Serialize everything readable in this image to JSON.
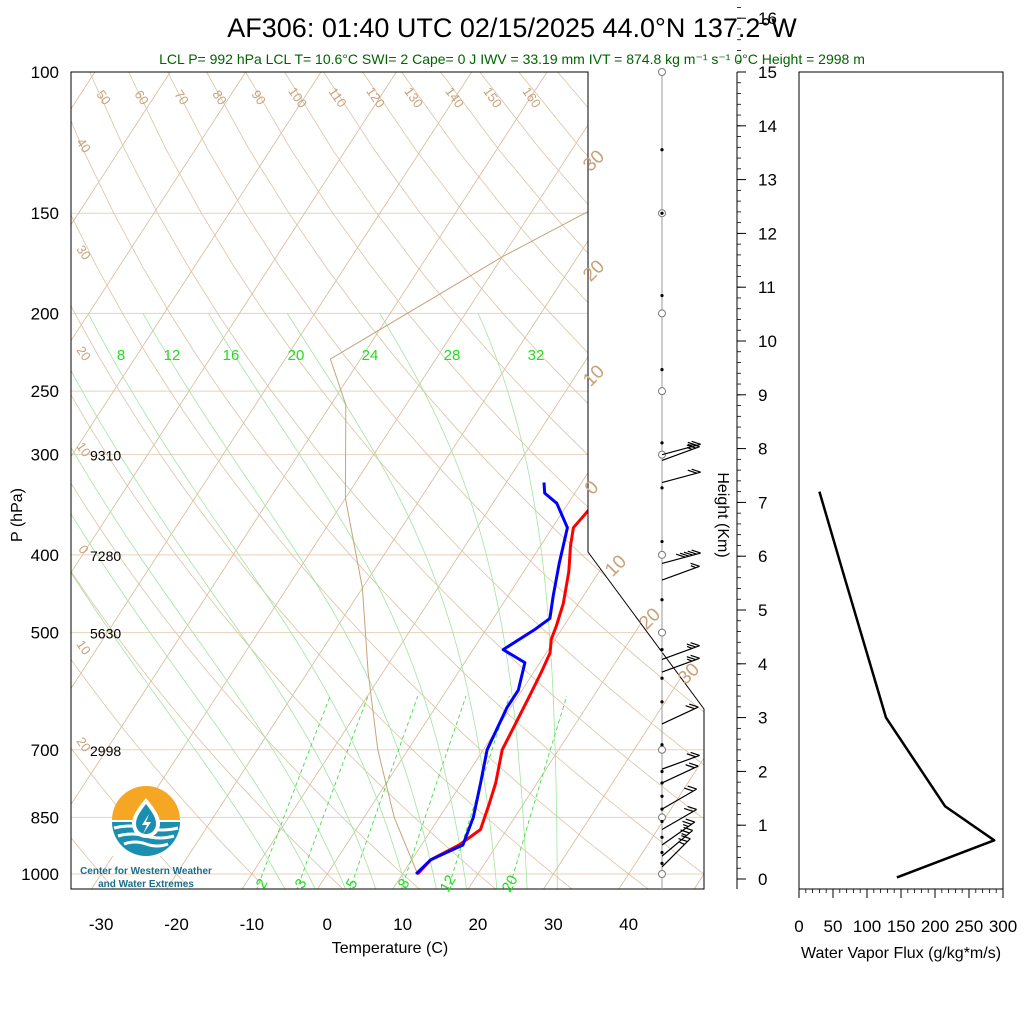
{
  "title": "AF306: 01:40 UTC 02/15/2025  44.0°N 137.2°W",
  "subtitle": "LCL P= 992 hPa  LCL T= 10.6°C  SWI= 2  Cape= 0 J  IWV = 33.19 mm  IVT = 874.8 kg m⁻¹ s⁻¹  0°C Height = 2998 m",
  "logo": {
    "line1": "Center for Western Weather",
    "line2": "and Water Extremes"
  },
  "colors": {
    "temperature": "#ff0000",
    "dewpoint": "#0000ff",
    "isotherm": "#c8a27a",
    "mixing_ratio": "#22dd22",
    "subtitle": "#006400"
  },
  "chart_data": [
    {
      "type": "line",
      "name": "skew-t",
      "xlabel": "Temperature (C)",
      "ylabel": "P (hPa)",
      "xlim": [
        -34,
        50
      ],
      "ylim": [
        1000,
        100
      ],
      "y_scale": "log",
      "x_ticks": [
        "-30",
        "-20",
        "-10",
        "0",
        "10",
        "20",
        "30",
        "40"
      ],
      "y_ticks": [
        "100",
        "150",
        "200",
        "250",
        "300",
        "400",
        "500",
        "700",
        "850",
        "1000"
      ],
      "height_labels": [
        {
          "p": 300,
          "label": "9310"
        },
        {
          "p": 400,
          "label": "7280"
        },
        {
          "p": 500,
          "label": "5630"
        },
        {
          "p": 700,
          "label": "2998"
        }
      ],
      "mixing_ratio_top_labels": [
        "8",
        "12",
        "16",
        "20",
        "24",
        "28",
        "32"
      ],
      "mixing_ratio_bottom_labels": [
        "2",
        "3",
        "5",
        "8",
        "12",
        "20"
      ],
      "isotherm_labels": [
        "50",
        "60",
        "70",
        "80",
        "90",
        "100",
        "110",
        "120",
        "130",
        "140",
        "150",
        "160"
      ],
      "isotherm_side_labels": [
        "40",
        "30",
        "20",
        "10",
        "0",
        "10",
        "20"
      ],
      "isotherm_right_labels": [
        "30",
        "20",
        "10",
        "0",
        "10",
        "20",
        "30"
      ],
      "series": [
        {
          "name": "temperature",
          "points": [
            [
              12.0,
              1000
            ],
            [
              12.5,
              960
            ],
            [
              15.0,
              920
            ],
            [
              16.5,
              880
            ],
            [
              15.5,
              820
            ],
            [
              14.5,
              770
            ],
            [
              12.5,
              700
            ],
            [
              11.5,
              600
            ],
            [
              11.0,
              560
            ],
            [
              10.5,
              530
            ],
            [
              9.5,
              510
            ],
            [
              9.0,
              490
            ],
            [
              8.0,
              460
            ],
            [
              6.0,
              420
            ],
            [
              4.0,
              390
            ],
            [
              2.8,
              370
            ],
            [
              3.5,
              345
            ],
            [
              3.5,
              330
            ],
            [
              2.5,
              322
            ]
          ]
        },
        {
          "name": "dewpoint",
          "points": [
            [
              11.8,
              1000
            ],
            [
              12.5,
              960
            ],
            [
              14.0,
              940
            ],
            [
              15.5,
              920
            ],
            [
              14.5,
              850
            ],
            [
              12.5,
              770
            ],
            [
              10.5,
              700
            ],
            [
              9.5,
              620
            ],
            [
              9.5,
              590
            ],
            [
              8.0,
              545
            ],
            [
              4.0,
              525
            ],
            [
              6.5,
              495
            ],
            [
              7.5,
              480
            ],
            [
              6.0,
              450
            ],
            [
              4.0,
              410
            ],
            [
              2.0,
              370
            ],
            [
              -1.5,
              345
            ],
            [
              -4.0,
              335
            ],
            [
              -5.0,
              325
            ]
          ]
        }
      ],
      "wind_barbs": [
        {
          "p": 980,
          "dir": 225,
          "speed": 25
        },
        {
          "p": 950,
          "dir": 230,
          "speed": 25
        },
        {
          "p": 920,
          "dir": 235,
          "speed": 25
        },
        {
          "p": 880,
          "dir": 240,
          "speed": 20
        },
        {
          "p": 830,
          "dir": 240,
          "speed": 20
        },
        {
          "p": 770,
          "dir": 245,
          "speed": 20
        },
        {
          "p": 740,
          "dir": 250,
          "speed": 20
        },
        {
          "p": 650,
          "dir": 245,
          "speed": 20
        },
        {
          "p": 560,
          "dir": 250,
          "speed": 25
        },
        {
          "p": 540,
          "dir": 250,
          "speed": 25
        },
        {
          "p": 430,
          "dir": 250,
          "speed": 15
        },
        {
          "p": 410,
          "dir": 255,
          "speed": 50
        },
        {
          "p": 325,
          "dir": 255,
          "speed": 20
        },
        {
          "p": 305,
          "dir": 250,
          "speed": 25
        },
        {
          "p": 300,
          "dir": 255,
          "speed": 25
        }
      ]
    },
    {
      "type": "line",
      "name": "water-vapor-flux",
      "xlabel": "Water Vapor Flux (g/kg*m/s)",
      "ylabel": "Height (Km)",
      "xlim": [
        0,
        300
      ],
      "ylim": [
        0,
        16.5
      ],
      "x_ticks": [
        "0",
        "50",
        "100",
        "150",
        "200",
        "250",
        "300"
      ],
      "y_ticks": [
        "0",
        "1",
        "2",
        "3",
        "4",
        "5",
        "6",
        "7",
        "8",
        "9",
        "10",
        "11",
        "12",
        "13",
        "14",
        "15",
        "16"
      ],
      "series": [
        {
          "name": "flux",
          "points": [
            [
              144,
              0.03
            ],
            [
              287,
              0.72
            ],
            [
              215,
              1.35
            ],
            [
              128,
              3.0
            ],
            [
              67,
              5.6
            ],
            [
              30,
              7.2
            ]
          ]
        }
      ]
    }
  ]
}
